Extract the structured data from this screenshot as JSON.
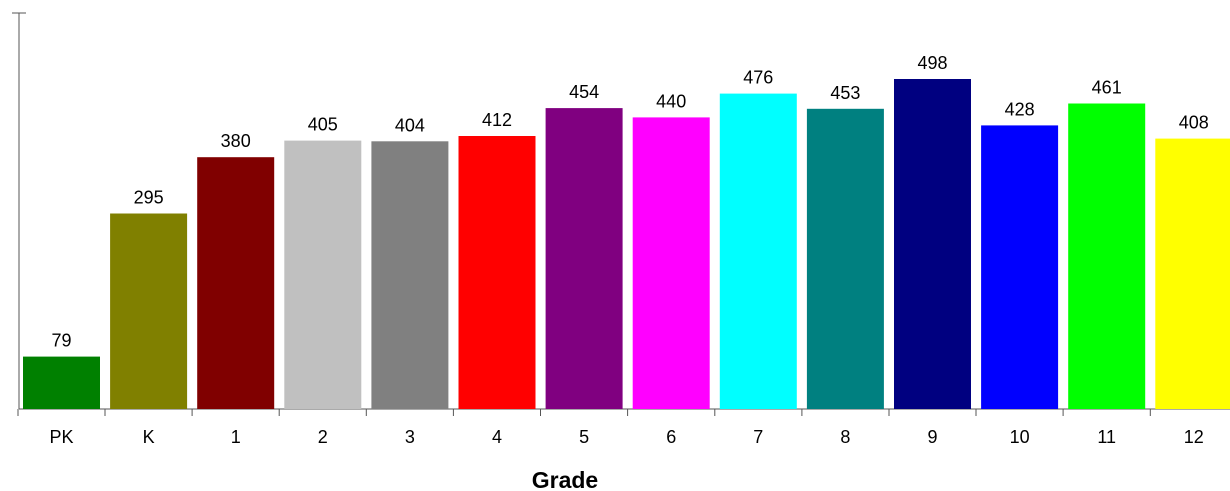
{
  "chart_data": {
    "type": "bar",
    "title": "",
    "xlabel": "Grade",
    "ylabel": "",
    "ylim": [
      0,
      560
    ],
    "grid": false,
    "categories": [
      "PK",
      "K",
      "1",
      "2",
      "3",
      "4",
      "5",
      "6",
      "7",
      "8",
      "9",
      "10",
      "11",
      "12"
    ],
    "values": [
      79,
      295,
      380,
      405,
      404,
      412,
      454,
      440,
      476,
      453,
      498,
      428,
      461,
      408
    ],
    "colors": [
      "#008000",
      "#808000",
      "#800000",
      "#c0c0c0",
      "#808080",
      "#ff0000",
      "#800080",
      "#ff00ff",
      "#00ffff",
      "#008080",
      "#000080",
      "#0000ff",
      "#00ff00",
      "#ffff00"
    ]
  }
}
